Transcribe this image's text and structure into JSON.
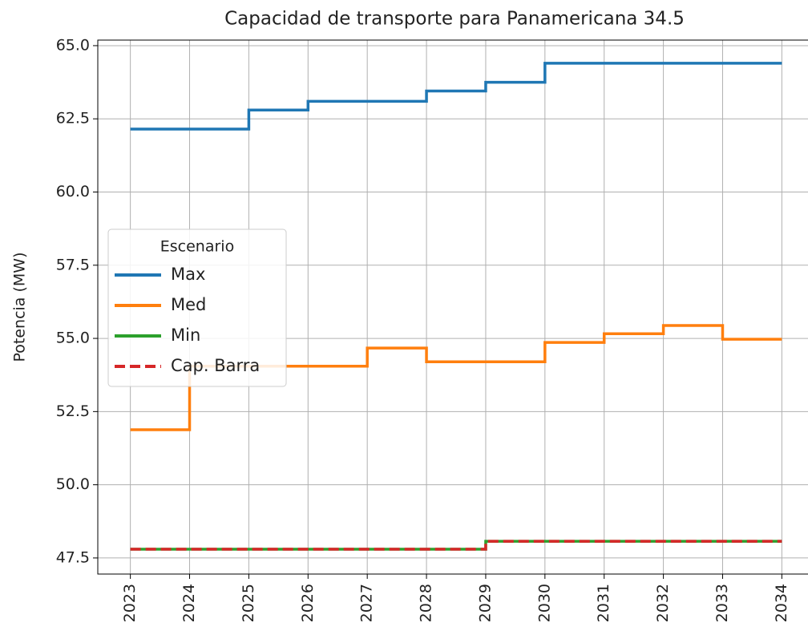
{
  "chart_data": {
    "type": "line",
    "step": "post",
    "title": "Capacidad de transporte para Panamericana 34.5",
    "y_label": "Potencia (MW)",
    "x": [
      2023,
      2024,
      2025,
      2026,
      2027,
      2028,
      2029,
      2030,
      2031,
      2032,
      2033,
      2034
    ],
    "series": [
      {
        "name": "Max",
        "color": "#1f77b4",
        "dash": false,
        "values": [
          62.15,
          62.15,
          62.8,
          63.1,
          63.1,
          63.45,
          63.75,
          64.4,
          64.4,
          64.4,
          64.4,
          64.4
        ]
      },
      {
        "name": "Med",
        "color": "#ff7f0e",
        "dash": false,
        "values": [
          51.88,
          54.05,
          54.05,
          54.05,
          54.67,
          54.2,
          54.2,
          54.86,
          55.16,
          55.44,
          54.97,
          54.97
        ]
      },
      {
        "name": "Min",
        "color": "#2ca02c",
        "dash": false,
        "values": [
          47.8,
          47.8,
          47.8,
          47.8,
          47.8,
          47.8,
          48.07,
          48.07,
          48.07,
          48.07,
          48.07,
          48.07
        ]
      },
      {
        "name": "Cap. Barra",
        "color": "#d62728",
        "dash": true,
        "values": [
          47.8,
          47.8,
          47.8,
          47.8,
          47.8,
          47.8,
          48.07,
          48.07,
          48.07,
          48.07,
          48.07,
          48.07
        ]
      }
    ],
    "legend_title": "Escenario",
    "legend": "center left",
    "xlim": [
      2022.45,
      2034.55
    ],
    "xticks": [
      2023,
      2024,
      2025,
      2026,
      2027,
      2028,
      2029,
      2030,
      2031,
      2032,
      2033,
      2034
    ],
    "ylim": [
      46.95,
      65.19
    ],
    "yticks": [
      {
        "value": 47.5,
        "label": "47.5"
      },
      {
        "value": 50,
        "label": "50.0"
      },
      {
        "value": 52.5,
        "label": "52.5"
      },
      {
        "value": 55,
        "label": "55.0"
      },
      {
        "value": 57.5,
        "label": "57.5"
      },
      {
        "value": 60,
        "label": "60.0"
      },
      {
        "value": 62.5,
        "label": "62.5"
      },
      {
        "value": 65,
        "label": "65.0"
      }
    ],
    "grid": true
  }
}
